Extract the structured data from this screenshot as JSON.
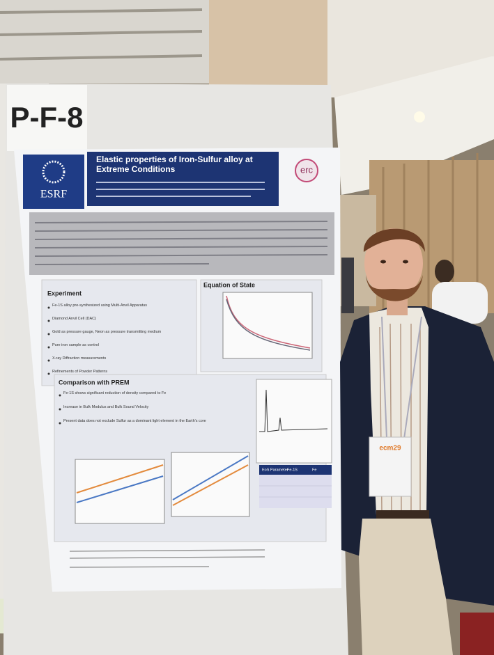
{
  "board": {
    "label": "P-F-8"
  },
  "poster": {
    "title": "Elastic properties of Iron-Sulfur alloy at Extreme Conditions",
    "logo_left": "ESRF",
    "logo_right": "erc",
    "sections": [
      {
        "heading": "Experiment",
        "bullets": [
          "Fe-1S alloy pre-synthesized using Multi-Anvil Apparatus",
          "Diamond Anvil Cell (DAC)",
          "Gold as pressure gauge, Neon as pressure transmitting medium",
          "Pure iron sample as control",
          "X-ray Diffraction measurements",
          "Refinements of Powder Patterns"
        ]
      },
      {
        "heading": "Equation of State"
      },
      {
        "heading": "Comparison with PREM",
        "bullets": [
          "Fe-1S shows significant reduction of density compared to Fe",
          "Increase in Bulk Modulus and Bulk Sound Velocity",
          "Present data does not exclude Sulfur as a dominant light element in the Earth's core"
        ]
      }
    ],
    "table_header": [
      "EoS Parameter",
      "Fe-1S",
      "Fe"
    ]
  },
  "badge": {
    "event": "ecm29"
  }
}
